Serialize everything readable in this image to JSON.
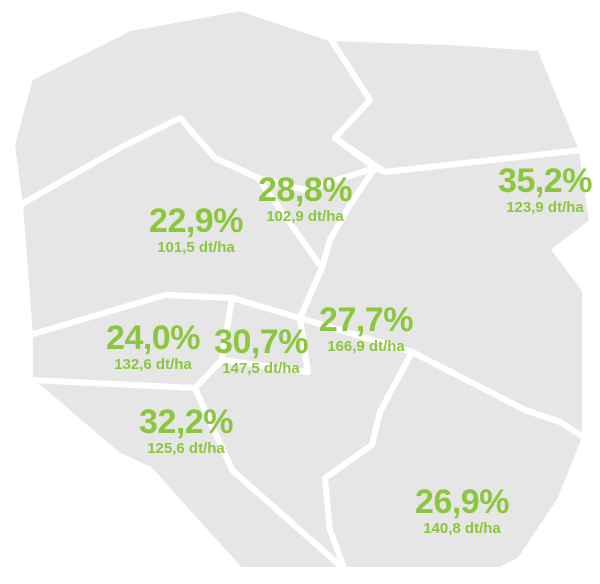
{
  "colors": {
    "land": "#e6e6e6",
    "border": "#ffffff",
    "label": "#8cc63f"
  },
  "regions": [
    {
      "id": "north-west",
      "percent": "",
      "yield": ""
    },
    {
      "id": "north-east",
      "percent": "",
      "yield": ""
    },
    {
      "id": "west",
      "percent": "22,9%",
      "yield": "101,5 dt/ha"
    },
    {
      "id": "central-west",
      "percent": "28,8%",
      "yield": "102,9 dt/ha"
    },
    {
      "id": "east",
      "percent": "35,2%",
      "yield": "123,9 dt/ha"
    },
    {
      "id": "south-west",
      "percent": "24,0%",
      "yield": "132,6 dt/ha"
    },
    {
      "id": "central-south",
      "percent": "30,7%",
      "yield": "147,5 dt/ha"
    },
    {
      "id": "central",
      "percent": "27,7%",
      "yield": "166,9 dt/ha"
    },
    {
      "id": "far-south-west",
      "percent": "32,2%",
      "yield": "125,6 dt/ha"
    },
    {
      "id": "south-east",
      "percent": "26,9%",
      "yield": "140,8 dt/ha"
    }
  ]
}
